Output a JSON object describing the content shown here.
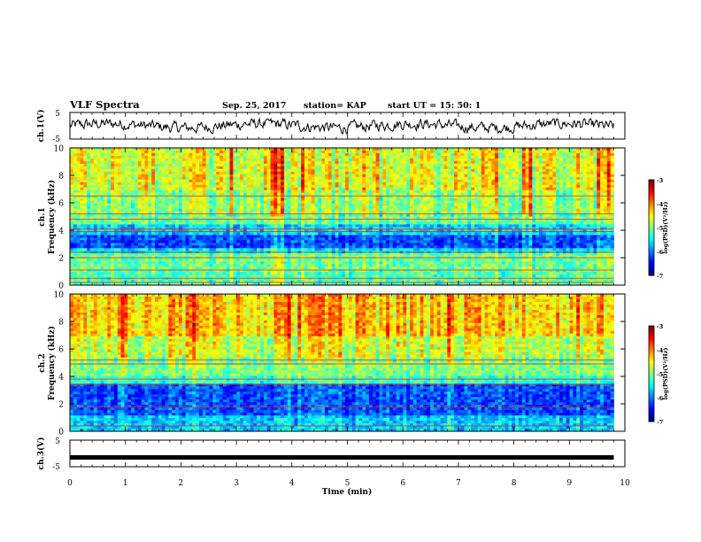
{
  "header": {
    "title": "VLF Spectra",
    "date": "Sep. 25, 2017",
    "station": "station= KAP",
    "start": "start  UT  =   15: 50: 1"
  },
  "chart_data": [
    {
      "type": "line",
      "ylabel": "ch.1(V)",
      "yticks": [
        "5",
        "-5"
      ],
      "ylim": [
        -5,
        5
      ],
      "xlim": [
        0,
        10
      ],
      "data_xlim": [
        0,
        9.8
      ],
      "description_of_values": "noisy voltage trace around ~0 V, excursions roughly between -3 V and +2.5 V"
    },
    {
      "type": "heatmap",
      "ylabel": "ch.1\nFrequency (kHz)",
      "ylabel_lines": [
        "ch.1",
        "Frequency (kHz)"
      ],
      "yticks": [
        "0",
        "2",
        "4",
        "6",
        "8",
        "10"
      ],
      "ylim": [
        0,
        10
      ],
      "xlim": [
        0,
        10
      ],
      "colorbar": {
        "label": "log(PSD)(V²/Hz)",
        "ticks": [
          "-3",
          "-4",
          "-5",
          "-6",
          "-7"
        ],
        "range": [
          -7,
          -3
        ]
      },
      "bands_khz": [
        {
          "from": 0,
          "to": 1.0,
          "level": -5.2
        },
        {
          "from": 1.0,
          "to": 2.3,
          "level": -5.1
        },
        {
          "from": 2.3,
          "to": 2.6,
          "level": -5.6
        },
        {
          "from": 2.6,
          "to": 3.6,
          "level": -6.2
        },
        {
          "from": 3.6,
          "to": 4.4,
          "level": -5.7
        },
        {
          "from": 4.4,
          "to": 5.2,
          "level": -5.1
        },
        {
          "from": 5.2,
          "to": 7.0,
          "level": -4.9
        },
        {
          "from": 7.0,
          "to": 10.0,
          "level": -4.6
        }
      ],
      "lines_khz": [
        0.2,
        0.5,
        1.1,
        2.0,
        2.4,
        3.9,
        4.1,
        4.8,
        5.2,
        6.5
      ]
    },
    {
      "type": "heatmap",
      "ylabel": "ch.2\nFrequency (kHz)",
      "ylabel_lines": [
        "ch.2",
        "Frequency (kHz)"
      ],
      "yticks": [
        "0",
        "2",
        "4",
        "6",
        "8",
        "10"
      ],
      "ylim": [
        0,
        10
      ],
      "xlim": [
        0,
        10
      ],
      "colorbar": {
        "label": "log(PSD)(V²/Hz)",
        "ticks": [
          "-3",
          "-4",
          "-5",
          "-6",
          "-7"
        ],
        "range": [
          -7,
          -3
        ]
      },
      "bands_khz": [
        {
          "from": 0,
          "to": 1.2,
          "level": -5.7
        },
        {
          "from": 1.2,
          "to": 3.5,
          "level": -6.2
        },
        {
          "from": 3.5,
          "to": 4.0,
          "level": -5.3
        },
        {
          "from": 4.0,
          "to": 5.3,
          "level": -5.0
        },
        {
          "from": 5.3,
          "to": 7.0,
          "level": -4.7
        },
        {
          "from": 7.0,
          "to": 10.0,
          "level": -4.3
        }
      ],
      "lines_khz": [
        0.4,
        1.8,
        3.4,
        3.8,
        4.9,
        5.2
      ]
    },
    {
      "type": "line",
      "ylabel": "ch.3(V)",
      "yticks": [
        "5",
        "-5"
      ],
      "ylim": [
        -5,
        5
      ],
      "xlim": [
        0,
        10
      ],
      "data_xlim": [
        0,
        9.8
      ],
      "constant_value": -1.5
    }
  ],
  "xaxis": {
    "label": "Time (min)",
    "ticks": [
      "0",
      "1",
      "2",
      "3",
      "4",
      "5",
      "6",
      "7",
      "8",
      "9",
      "10"
    ],
    "range": [
      0,
      10
    ]
  }
}
